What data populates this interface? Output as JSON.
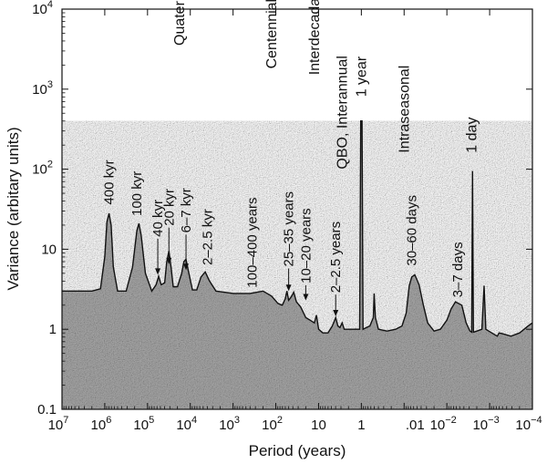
{
  "chart_data": {
    "type": "area",
    "title": "",
    "xlabel": "Period (years)",
    "ylabel": "Variance (arbitary units)",
    "xscale": "log-reversed",
    "yscale": "log",
    "xlim_exp": [
      7,
      -4
    ],
    "ylim": [
      0.1,
      10000
    ],
    "x_tick_labels": [
      {
        "exp": 7,
        "base": "10",
        "sup": "7"
      },
      {
        "exp": 6,
        "base": "10",
        "sup": "6"
      },
      {
        "exp": 5,
        "base": "10",
        "sup": "5"
      },
      {
        "exp": 4,
        "base": "10",
        "sup": "4"
      },
      {
        "exp": 3,
        "base": "10",
        "sup": "3"
      },
      {
        "exp": 2,
        "base": "10",
        "sup": "2"
      },
      {
        "exp": 1,
        "base": "10",
        "sup": ""
      },
      {
        "exp": 0,
        "base": "1",
        "sup": ""
      },
      {
        "exp": -2,
        "base": ".01",
        "sup": ""
      },
      {
        "exp": -2,
        "base": "10",
        "sup": "−2"
      },
      {
        "exp": -3,
        "base": "10",
        "sup": "−3"
      },
      {
        "exp": -4,
        "base": "10",
        "sup": "−4"
      }
    ],
    "y_tick_labels": [
      {
        "value": 0.1,
        "base": "0.1",
        "sup": ""
      },
      {
        "value": 1,
        "base": "1",
        "sup": ""
      },
      {
        "value": 10,
        "base": "10",
        "sup": ""
      },
      {
        "value": 100,
        "base": "10",
        "sup": "2"
      },
      {
        "value": 1000,
        "base": "10",
        "sup": "3"
      },
      {
        "value": 10000,
        "base": "10",
        "sup": "4"
      }
    ],
    "fill_color": "#a9a9a9",
    "line_color": "#111111",
    "baseline": 3.0,
    "spectrum_points": [
      [
        7.0,
        3.0
      ],
      [
        6.3,
        3.0
      ],
      [
        6.1,
        3.2
      ],
      [
        6.0,
        8
      ],
      [
        5.95,
        22
      ],
      [
        5.9,
        28
      ],
      [
        5.85,
        20
      ],
      [
        5.8,
        6
      ],
      [
        5.7,
        3.0
      ],
      [
        5.5,
        3.0
      ],
      [
        5.35,
        6
      ],
      [
        5.25,
        17
      ],
      [
        5.2,
        21
      ],
      [
        5.15,
        15
      ],
      [
        5.05,
        5
      ],
      [
        4.9,
        3.0
      ],
      [
        4.8,
        3.6
      ],
      [
        4.74,
        4.6
      ],
      [
        4.68,
        3.6
      ],
      [
        4.6,
        3.8
      ],
      [
        4.55,
        7
      ],
      [
        4.5,
        9.5
      ],
      [
        4.45,
        6
      ],
      [
        4.4,
        3.4
      ],
      [
        4.3,
        3.4
      ],
      [
        4.2,
        5
      ],
      [
        4.15,
        7
      ],
      [
        4.1,
        7.5
      ],
      [
        4.05,
        5.5
      ],
      [
        3.95,
        3.1
      ],
      [
        3.85,
        3.1
      ],
      [
        3.75,
        4.5
      ],
      [
        3.65,
        5.2
      ],
      [
        3.55,
        4.0
      ],
      [
        3.4,
        3.0
      ],
      [
        3.0,
        2.8
      ],
      [
        2.6,
        2.8
      ],
      [
        2.3,
        3.0
      ],
      [
        2.1,
        2.6
      ],
      [
        1.95,
        2.1
      ],
      [
        1.85,
        2.0
      ],
      [
        1.78,
        2.4
      ],
      [
        1.74,
        3.0
      ],
      [
        1.7,
        2.3
      ],
      [
        1.65,
        2.5
      ],
      [
        1.58,
        2.9
      ],
      [
        1.52,
        2.2
      ],
      [
        1.42,
        1.9
      ],
      [
        1.3,
        1.4
      ],
      [
        1.2,
        1.3
      ],
      [
        1.1,
        1.2
      ],
      [
        1.05,
        1.5
      ],
      [
        1.0,
        1.0
      ],
      [
        0.9,
        0.9
      ],
      [
        0.78,
        0.9
      ],
      [
        0.68,
        1.1
      ],
      [
        0.6,
        1.4
      ],
      [
        0.55,
        1.1
      ],
      [
        0.5,
        1.05
      ],
      [
        0.45,
        1.2
      ],
      [
        0.4,
        1.0
      ],
      [
        0.3,
        1.0
      ],
      [
        0.15,
        1.0
      ],
      [
        0.06,
        1.0
      ],
      [
        0.04,
        1.0
      ],
      [
        0.015,
        400
      ],
      [
        -0.015,
        400
      ],
      [
        -0.04,
        1.0
      ],
      [
        -0.12,
        1.05
      ],
      [
        -0.2,
        1.1
      ],
      [
        -0.28,
        1.4
      ],
      [
        -0.3,
        2.8
      ],
      [
        -0.33,
        1.4
      ],
      [
        -0.4,
        1.0
      ],
      [
        -0.6,
        0.95
      ],
      [
        -0.8,
        1.0
      ],
      [
        -0.95,
        1.1
      ],
      [
        -1.05,
        1.6
      ],
      [
        -1.12,
        3.5
      ],
      [
        -1.18,
        4.5
      ],
      [
        -1.25,
        4.8
      ],
      [
        -1.35,
        3.6
      ],
      [
        -1.45,
        2.0
      ],
      [
        -1.55,
        1.2
      ],
      [
        -1.7,
        0.95
      ],
      [
        -1.85,
        1.0
      ],
      [
        -2.0,
        1.3
      ],
      [
        -2.1,
        1.8
      ],
      [
        -2.2,
        2.2
      ],
      [
        -2.35,
        2.0
      ],
      [
        -2.45,
        1.2
      ],
      [
        -2.54,
        0.95
      ],
      [
        -2.58,
        0.92
      ],
      [
        -2.6,
        95
      ],
      [
        -2.62,
        0.92
      ],
      [
        -2.7,
        0.95
      ],
      [
        -2.82,
        1.0
      ],
      [
        -2.87,
        3.5
      ],
      [
        -2.91,
        1.0
      ],
      [
        -3.05,
        0.9
      ],
      [
        -3.18,
        0.82
      ],
      [
        -3.22,
        0.9
      ],
      [
        -3.3,
        0.88
      ],
      [
        -3.5,
        0.82
      ],
      [
        -3.7,
        0.9
      ],
      [
        -3.9,
        1.1
      ],
      [
        -4.0,
        1.2
      ]
    ],
    "band_labels": [
      {
        "text": "Quaternary",
        "x_exp": 4.25,
        "y_value": 3500
      },
      {
        "text": "Centennial",
        "x_exp": 2.1,
        "y_value": 1800
      },
      {
        "text": "Interdecadal",
        "x_exp": 1.1,
        "y_value": 1500
      },
      {
        "text": "QBO, Interannual",
        "x_exp": 0.45,
        "y_value": 100
      },
      {
        "text": "1 year",
        "x_exp": 0.0,
        "y_value": 800
      },
      {
        "text": "Intraseasonal",
        "x_exp": -1.0,
        "y_value": 160
      },
      {
        "text": "1 day",
        "x_exp": -2.58,
        "y_value": 160
      }
    ],
    "peak_annotations": [
      {
        "text": "400 kyr",
        "x_exp": 5.9,
        "y_value": 36,
        "arrow": false
      },
      {
        "text": "100 kyr",
        "x_exp": 5.25,
        "y_value": 26,
        "arrow": false
      },
      {
        "text": "40 kyr",
        "x_exp": 4.76,
        "y_value": 8,
        "arrow": true,
        "arrow_to": 4.8
      },
      {
        "text": "20 kyr",
        "x_exp": 4.5,
        "y_value": 11,
        "arrow": true,
        "arrow_to": 6.5
      },
      {
        "text": "6–7 kyr",
        "x_exp": 4.1,
        "y_value": 9,
        "arrow": true,
        "arrow_to": 5.5
      },
      {
        "text": "2–2.5 kyr",
        "x_exp": 3.6,
        "y_value": 6.3,
        "arrow": false
      },
      {
        "text": "100–400 years",
        "x_exp": 2.55,
        "y_value": 3.3,
        "arrow": false
      },
      {
        "text": "25–35 years",
        "x_exp": 1.7,
        "y_value": 3.4,
        "arrow": true,
        "arrow_to": 3.0
      },
      {
        "text": "10–20 years",
        "x_exp": 1.3,
        "y_value": 2.1,
        "arrow": true,
        "arrow_to": 2.3
      },
      {
        "text": "2–2.5 years",
        "x_exp": 0.6,
        "y_value": 1.6,
        "arrow": true,
        "arrow_to": 1.45
      },
      {
        "text": "30–60 days",
        "x_exp": -1.18,
        "y_value": 6.2,
        "arrow": false
      },
      {
        "text": "3–7 days",
        "x_exp": -2.25,
        "y_value": 2.5,
        "arrow": false
      }
    ]
  }
}
